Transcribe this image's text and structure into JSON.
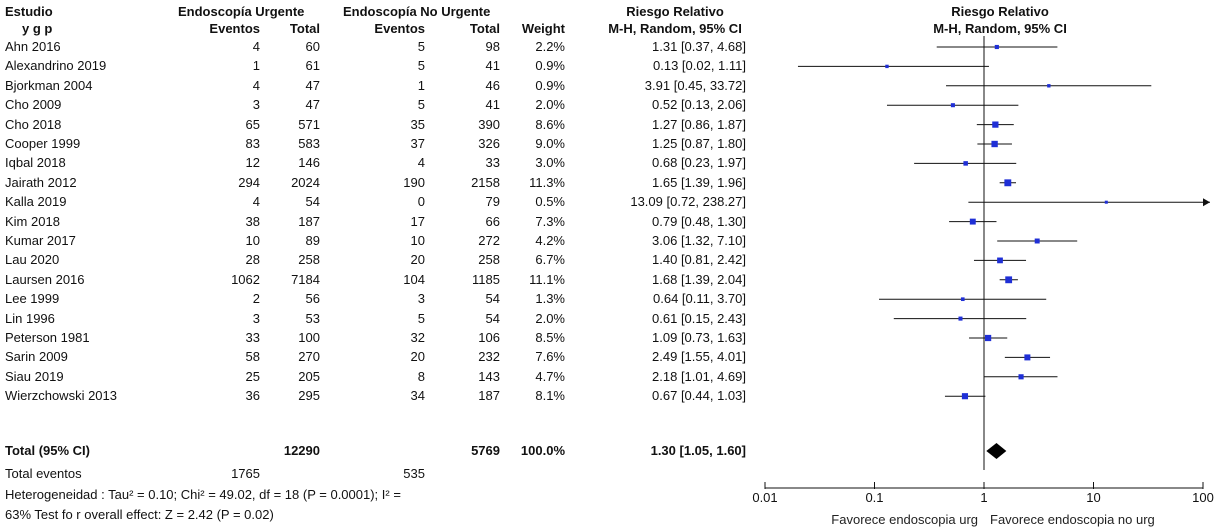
{
  "header": {
    "study": "Estudio",
    "group_a": "Endoscopía Urgente",
    "group_b": "Endoscopía No Urgente",
    "rr": "Riesgo Relativo",
    "rr_plot": "Riesgo Relativo",
    "stub": "y          g     p",
    "events_a": "Eventos",
    "total_a": "Total",
    "events_b": "Eventos",
    "total_b": "Total",
    "weight": "Weight",
    "method": "M-H, Random, 95% CI",
    "method_plot": "M-H, Random, 95% CI"
  },
  "rows": [
    {
      "study": "Ahn 2016",
      "ea": "4",
      "ta": "60",
      "eb": "5",
      "tb": "98",
      "w": "2.2%",
      "ci": "1.31 [0.37, 4.68]"
    },
    {
      "study": "Alexandrino 2019",
      "ea": "1",
      "ta": "61",
      "eb": "5",
      "tb": "41",
      "w": "0.9%",
      "ci": "0.13 [0.02, 1.11]"
    },
    {
      "study": "Bjorkman 2004",
      "ea": "4",
      "ta": "47",
      "eb": "1",
      "tb": "46",
      "w": "0.9%",
      "ci": "3.91 [0.45, 33.72]"
    },
    {
      "study": "Cho 2009",
      "ea": "3",
      "ta": "47",
      "eb": "5",
      "tb": "41",
      "w": "2.0%",
      "ci": "0.52 [0.13, 2.06]"
    },
    {
      "study": "Cho 2018",
      "ea": "65",
      "ta": "571",
      "eb": "35",
      "tb": "390",
      "w": "8.6%",
      "ci": "1.27 [0.86, 1.87]"
    },
    {
      "study": "Cooper 1999",
      "ea": "83",
      "ta": "583",
      "eb": "37",
      "tb": "326",
      "w": "9.0%",
      "ci": "1.25 [0.87, 1.80]"
    },
    {
      "study": "Iqbal 2018",
      "ea": "12",
      "ta": "146",
      "eb": "4",
      "tb": "33",
      "w": "3.0%",
      "ci": "0.68 [0.23, 1.97]"
    },
    {
      "study": "Jairath 2012",
      "ea": "294",
      "ta": "2024",
      "eb": "190",
      "tb": "2158",
      "w": "11.3%",
      "ci": "1.65 [1.39, 1.96]"
    },
    {
      "study": "Kalla 2019",
      "ea": "4",
      "ta": "54",
      "eb": "0",
      "tb": "79",
      "w": "0.5%",
      "ci": "13.09 [0.72, 238.27]"
    },
    {
      "study": "Kim 2018",
      "ea": "38",
      "ta": "187",
      "eb": "17",
      "tb": "66",
      "w": "7.3%",
      "ci": "0.79 [0.48, 1.30]"
    },
    {
      "study": "Kumar 2017",
      "ea": "10",
      "ta": "89",
      "eb": "10",
      "tb": "272",
      "w": "4.2%",
      "ci": "3.06 [1.32, 7.10]"
    },
    {
      "study": "Lau 2020",
      "ea": "28",
      "ta": "258",
      "eb": "20",
      "tb": "258",
      "w": "6.7%",
      "ci": "1.40 [0.81, 2.42]"
    },
    {
      "study": "Laursen 2016",
      "ea": "1062",
      "ta": "7184",
      "eb": "104",
      "tb": "1185",
      "w": "11.1%",
      "ci": "1.68 [1.39, 2.04]"
    },
    {
      "study": "Lee 1999",
      "ea": "2",
      "ta": "56",
      "eb": "3",
      "tb": "54",
      "w": "1.3%",
      "ci": "0.64 [0.11, 3.70]"
    },
    {
      "study": "Lin 1996",
      "ea": "3",
      "ta": "53",
      "eb": "5",
      "tb": "54",
      "w": "2.0%",
      "ci": "0.61 [0.15, 2.43]"
    },
    {
      "study": "Peterson 1981",
      "ea": "33",
      "ta": "100",
      "eb": "32",
      "tb": "106",
      "w": "8.5%",
      "ci": "1.09 [0.73, 1.63]"
    },
    {
      "study": "Sarin 2009",
      "ea": "58",
      "ta": "270",
      "eb": "20",
      "tb": "232",
      "w": "7.6%",
      "ci": "2.49 [1.55, 4.01]"
    },
    {
      "study": "Siau 2019",
      "ea": "25",
      "ta": "205",
      "eb": "8",
      "tb": "143",
      "w": "4.7%",
      "ci": "2.18 [1.01, 4.69]"
    },
    {
      "study": "Wierzchowski 2013",
      "ea": "36",
      "ta": "295",
      "eb": "34",
      "tb": "187",
      "w": "8.1%",
      "ci": "0.67 [0.44, 1.03]"
    }
  ],
  "total": {
    "label": "Total (95% CI)",
    "ta": "12290",
    "tb": "5769",
    "w": "100.0%",
    "ci": "1.30 [1.05, 1.60]"
  },
  "total_events": {
    "label": "Total eventos",
    "ea": "1765",
    "eb": "535"
  },
  "heterogeneity": "Heterogeneidad : Tau² = 0.10; Chi² = 49.02, df = 18 (P = 0.0001); I² =",
  "overall_effect": "63% Test fo r overall effect: Z = 2.42 (P = 0.02)",
  "chart_data": {
    "type": "scatter",
    "subtype": "forest-plot",
    "title": "Riesgo Relativo",
    "subtitle": "M-H, Random, 95% CI",
    "x_scale": "log",
    "xlim": [
      0.01,
      100
    ],
    "x_ticks": [
      0.01,
      0.1,
      1,
      10,
      100
    ],
    "x_tick_labels": [
      "0.01",
      "0.1",
      "1",
      "10",
      "100"
    ],
    "favours_left": "Favorece endoscopia urg",
    "favours_right": "Favorece endoscopia no urg",
    "reference_line": 1,
    "marker_color": "#1f2fd6",
    "series": [
      {
        "values": [
          {
            "study": "Ahn 2016",
            "rr": 1.31,
            "lo": 0.37,
            "hi": 4.68,
            "weight": 2.2
          },
          {
            "study": "Alexandrino 2019",
            "rr": 0.13,
            "lo": 0.02,
            "hi": 1.11,
            "weight": 0.9
          },
          {
            "study": "Bjorkman 2004",
            "rr": 3.91,
            "lo": 0.45,
            "hi": 33.72,
            "weight": 0.9
          },
          {
            "study": "Cho 2009",
            "rr": 0.52,
            "lo": 0.13,
            "hi": 2.06,
            "weight": 2.0
          },
          {
            "study": "Cho 2018",
            "rr": 1.27,
            "lo": 0.86,
            "hi": 1.87,
            "weight": 8.6
          },
          {
            "study": "Cooper 1999",
            "rr": 1.25,
            "lo": 0.87,
            "hi": 1.8,
            "weight": 9.0
          },
          {
            "study": "Iqbal 2018",
            "rr": 0.68,
            "lo": 0.23,
            "hi": 1.97,
            "weight": 3.0
          },
          {
            "study": "Jairath 2012",
            "rr": 1.65,
            "lo": 1.39,
            "hi": 1.96,
            "weight": 11.3
          },
          {
            "study": "Kalla 2019",
            "rr": 13.09,
            "lo": 0.72,
            "hi": 238.27,
            "weight": 0.5
          },
          {
            "study": "Kim 2018",
            "rr": 0.79,
            "lo": 0.48,
            "hi": 1.3,
            "weight": 7.3
          },
          {
            "study": "Kumar 2017",
            "rr": 3.06,
            "lo": 1.32,
            "hi": 7.1,
            "weight": 4.2
          },
          {
            "study": "Lau 2020",
            "rr": 1.4,
            "lo": 0.81,
            "hi": 2.42,
            "weight": 6.7
          },
          {
            "study": "Laursen 2016",
            "rr": 1.68,
            "lo": 1.39,
            "hi": 2.04,
            "weight": 11.1
          },
          {
            "study": "Lee 1999",
            "rr": 0.64,
            "lo": 0.11,
            "hi": 3.7,
            "weight": 1.3
          },
          {
            "study": "Lin 1996",
            "rr": 0.61,
            "lo": 0.15,
            "hi": 2.43,
            "weight": 2.0
          },
          {
            "study": "Peterson 1981",
            "rr": 1.09,
            "lo": 0.73,
            "hi": 1.63,
            "weight": 8.5
          },
          {
            "study": "Sarin 2009",
            "rr": 2.49,
            "lo": 1.55,
            "hi": 4.01,
            "weight": 7.6
          },
          {
            "study": "Siau 2019",
            "rr": 2.18,
            "lo": 1.01,
            "hi": 4.69,
            "weight": 4.7
          },
          {
            "study": "Wierzchowski 2013",
            "rr": 0.67,
            "lo": 0.44,
            "hi": 1.03,
            "weight": 8.1
          }
        ]
      }
    ],
    "pooled": {
      "rr": 1.3,
      "lo": 1.05,
      "hi": 1.6
    }
  }
}
